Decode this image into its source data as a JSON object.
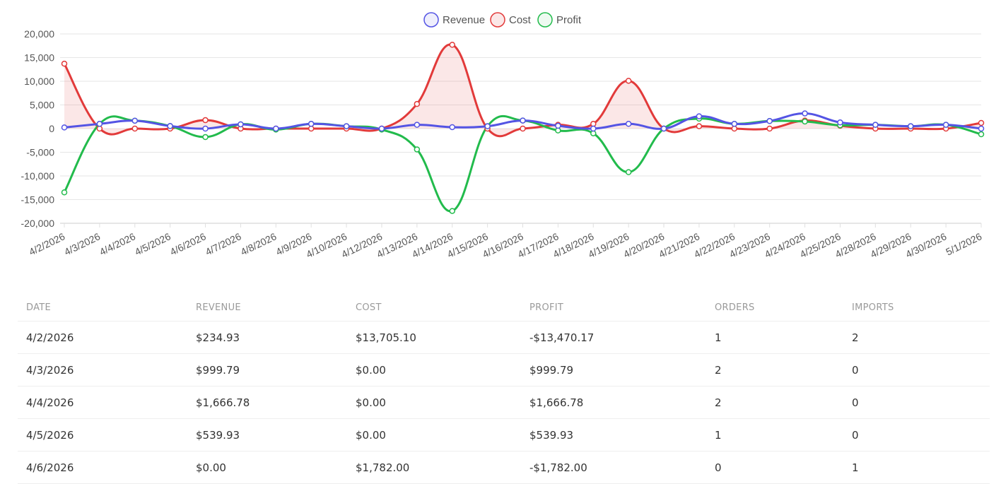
{
  "chart_data": {
    "type": "line",
    "categories": [
      "4/2/2026",
      "4/3/2026",
      "4/4/2026",
      "4/5/2026",
      "4/6/2026",
      "4/7/2026",
      "4/8/2026",
      "4/9/2026",
      "4/10/2026",
      "4/12/2026",
      "4/13/2026",
      "4/14/2026",
      "4/15/2026",
      "4/16/2026",
      "4/17/2026",
      "4/18/2026",
      "4/19/2026",
      "4/20/2026",
      "4/21/2026",
      "4/22/2026",
      "4/23/2026",
      "4/24/2026",
      "4/25/2026",
      "4/28/2026",
      "4/29/2026",
      "4/30/2026",
      "5/1/2026"
    ],
    "series": [
      {
        "name": "Revenue",
        "color": "#5454e4",
        "fill": false,
        "values": [
          234.93,
          999.79,
          1666.78,
          539.93,
          0,
          900,
          0,
          1000,
          500,
          0,
          800,
          300,
          500,
          1700,
          600,
          0,
          1000,
          0,
          2600,
          1000,
          1600,
          3200,
          1300,
          800,
          500,
          800,
          0
        ]
      },
      {
        "name": "Cost",
        "color": "#e23a3a",
        "fill": true,
        "fillColor": "rgba(226,58,58,0.12)",
        "values": [
          13705.1,
          0,
          0,
          0,
          1782.0,
          0,
          0,
          0,
          0,
          0,
          5200,
          17700,
          0,
          0,
          800,
          1000,
          10100,
          0,
          500,
          0,
          0,
          1700,
          600,
          0,
          0,
          0,
          1200
        ]
      },
      {
        "name": "Profit",
        "color": "#22bb4c",
        "fill": false,
        "values": [
          -13470.17,
          999.79,
          1666.78,
          539.93,
          -1782.0,
          900,
          -200,
          1000,
          500,
          -200,
          -4400,
          -17400,
          500,
          1700,
          -400,
          -1000,
          -9200,
          0,
          2100,
          1000,
          1600,
          1500,
          700,
          800,
          500,
          800,
          -1200
        ]
      }
    ],
    "yticks": [
      "20,000",
      "15,000",
      "10,000",
      "5,000",
      "0",
      "-5,000",
      "-10,000",
      "-15,000",
      "-20,000"
    ],
    "ylim": [
      -20000,
      20000
    ],
    "grid": true,
    "legend": "top-center"
  },
  "table": {
    "headers": [
      "DATE",
      "REVENUE",
      "COST",
      "PROFIT",
      "ORDERS",
      "IMPORTS"
    ],
    "rows": [
      [
        "4/2/2026",
        "$234.93",
        "$13,705.10",
        "-$13,470.17",
        "1",
        "2"
      ],
      [
        "4/3/2026",
        "$999.79",
        "$0.00",
        "$999.79",
        "2",
        "0"
      ],
      [
        "4/4/2026",
        "$1,666.78",
        "$0.00",
        "$1,666.78",
        "2",
        "0"
      ],
      [
        "4/5/2026",
        "$539.93",
        "$0.00",
        "$539.93",
        "1",
        "0"
      ],
      [
        "4/6/2026",
        "$0.00",
        "$1,782.00",
        "-$1,782.00",
        "0",
        "1"
      ]
    ]
  }
}
